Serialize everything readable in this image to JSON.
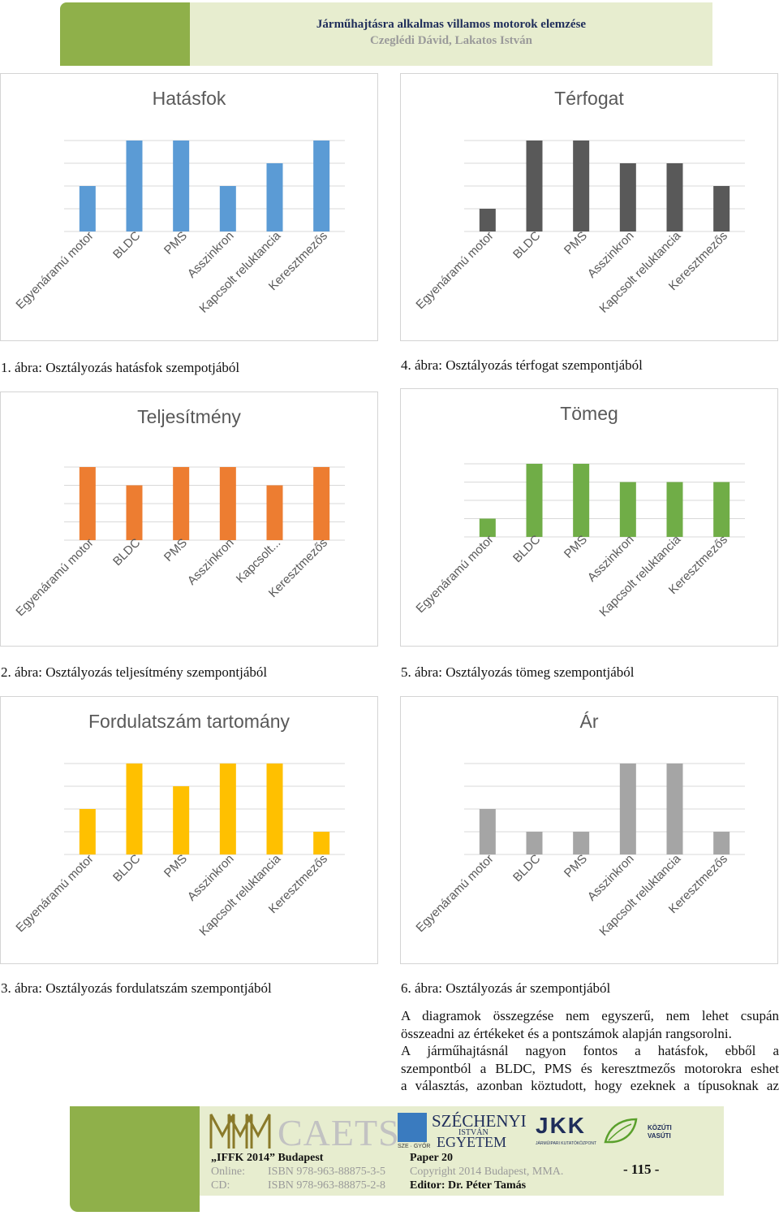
{
  "header": {
    "title": "Járműhajtásra alkalmas villamos motorok elemzése",
    "authors": "Czeglédi Dávid, Lakatos István"
  },
  "charts": [
    {
      "id": "hatasfok",
      "title": "Hatásfok",
      "color": "#5b9bd5",
      "values": [
        2,
        4,
        4,
        2,
        3,
        4
      ],
      "labels": [
        "Egyenáramú motor",
        "BLDC",
        "PMS",
        "Asszinkron",
        "Kapcsolt reluktancia",
        "Keresztmezős"
      ],
      "caption": "1. ábra: Osztályozás hatásfok szempotjából"
    },
    {
      "id": "terfogat",
      "title": "Térfogat",
      "color": "#595959",
      "values": [
        1,
        4,
        4,
        3,
        3,
        2
      ],
      "labels": [
        "Egyenáramú motor",
        "BLDC",
        "PMS",
        "Asszinkron",
        "Kapcsolt reluktancia",
        "Keresztmezős"
      ],
      "caption": "4. ábra: Osztályozás térfogat szempontjából"
    },
    {
      "id": "teljesitmeny",
      "title": "Teljesítmény",
      "color": "#ed7d31",
      "values": [
        4,
        3,
        4,
        4,
        3,
        4
      ],
      "labels": [
        "Egyenáramú motor",
        "BLDC",
        "PMS",
        "Asszinkron",
        "Kapcsolt...",
        "Keresztmezős"
      ],
      "caption": "2. ábra: Osztályozás teljesítmény szempontjából"
    },
    {
      "id": "tomeg",
      "title": "Tömeg",
      "color": "#70ad47",
      "values": [
        1,
        4,
        4,
        3,
        3,
        3
      ],
      "labels": [
        "Egyenáramú motor",
        "BLDC",
        "PMS",
        "Asszinkron",
        "Kapcsolt reluktancia",
        "Keresztmezős"
      ],
      "caption": "5. ábra: Osztályozás tömeg szempontjából"
    },
    {
      "id": "fordulatszam",
      "title": "Fordulatszám tartomány",
      "color": "#ffc000",
      "values": [
        2,
        4,
        3,
        4,
        4,
        1
      ],
      "labels": [
        "Egyenáramú motor",
        "BLDC",
        "PMS",
        "Asszinkron",
        "Kapcsolt reluktancia",
        "Keresztmezős"
      ],
      "caption": "3. ábra: Osztályozás fordulatszám szempontjából"
    },
    {
      "id": "ar",
      "title": "Ár",
      "color": "#a5a5a5",
      "values": [
        2,
        1,
        1,
        4,
        4,
        1
      ],
      "labels": [
        "Egyenáramú motor",
        "BLDC",
        "PMS",
        "Asszinkron",
        "Kapcsolt reluktancia",
        "Keresztmezős"
      ],
      "caption": "6. ábra: Osztályozás ár szempontjából"
    }
  ],
  "chart_data": [
    {
      "type": "bar",
      "title": "Hatásfok",
      "categories": [
        "Egyenáramú motor",
        "BLDC",
        "PMS",
        "Asszinkron",
        "Kapcsolt reluktancia",
        "Keresztmezős"
      ],
      "values": [
        2,
        4,
        4,
        2,
        3,
        4
      ],
      "ylim": [
        0,
        4
      ]
    },
    {
      "type": "bar",
      "title": "Térfogat",
      "categories": [
        "Egyenáramú motor",
        "BLDC",
        "PMS",
        "Asszinkron",
        "Kapcsolt reluktancia",
        "Keresztmezős"
      ],
      "values": [
        1,
        4,
        4,
        3,
        3,
        2
      ],
      "ylim": [
        0,
        4
      ]
    },
    {
      "type": "bar",
      "title": "Teljesítmény",
      "categories": [
        "Egyenáramú motor",
        "BLDC",
        "PMS",
        "Asszinkron",
        "Kapcsolt...",
        "Keresztmezős"
      ],
      "values": [
        4,
        3,
        4,
        4,
        3,
        4
      ],
      "ylim": [
        0,
        4
      ]
    },
    {
      "type": "bar",
      "title": "Tömeg",
      "categories": [
        "Egyenáramú motor",
        "BLDC",
        "PMS",
        "Asszinkron",
        "Kapcsolt reluktancia",
        "Keresztmezős"
      ],
      "values": [
        1,
        4,
        4,
        3,
        3,
        3
      ],
      "ylim": [
        0,
        4
      ]
    },
    {
      "type": "bar",
      "title": "Fordulatszám tartomány",
      "categories": [
        "Egyenáramú motor",
        "BLDC",
        "PMS",
        "Asszinkron",
        "Kapcsolt reluktancia",
        "Keresztmezős"
      ],
      "values": [
        2,
        4,
        3,
        4,
        4,
        1
      ],
      "ylim": [
        0,
        4
      ]
    },
    {
      "type": "bar",
      "title": "Ár",
      "categories": [
        "Egyenáramú motor",
        "BLDC",
        "PMS",
        "Asszinkron",
        "Kapcsolt reluktancia",
        "Keresztmezős"
      ],
      "values": [
        2,
        1,
        1,
        4,
        4,
        1
      ],
      "ylim": [
        0,
        4
      ]
    }
  ],
  "body": {
    "p1_l1": "A diagramok összegzése nem egyszerű, nem lehet csupán",
    "p1_l2": "összeadni az értékeket és a pontszámok alapján rangsorolni.",
    "p2_l1": "A járműhajtásnál nagyon fontos a hatásfok, ebből a",
    "p2_l2": "szempontból a BLDC, PMS és keresztmezős motorokra eshet",
    "p2_l3": "a választás, azonban köztudott, hogy ezeknek a típusoknak az"
  },
  "footer": {
    "logo_caets": "CAETS",
    "logo_sze_small": "SZE · GYŐR",
    "logo_szechenyi_1": "SZÉCHENYI",
    "logo_szechenyi_2": "ISTVÁN",
    "logo_szechenyi_3": "EGYETEM",
    "logo_jkk": "JKK",
    "logo_jkk_sub": "JÁRMŰIPARI KUTATÓKÖZPONT",
    "logo_kozuti": "KÖZÚTI VASÚTI",
    "conf": "„IFFK 2014” Budapest",
    "online_label": "Online:",
    "online_isbn": "ISBN 978-963-88875-3-5",
    "cd_label": "CD:",
    "cd_isbn": "ISBN 978-963-88875-2-8",
    "paper": "Paper 20",
    "copyright": "Copyright 2014 Budapest, MMA.",
    "editor": "Editor: Dr. Péter Tamás",
    "page": "- 115 -"
  },
  "colors": {
    "accent_green": "#8fb04a",
    "pale_green": "#e7edcf"
  }
}
